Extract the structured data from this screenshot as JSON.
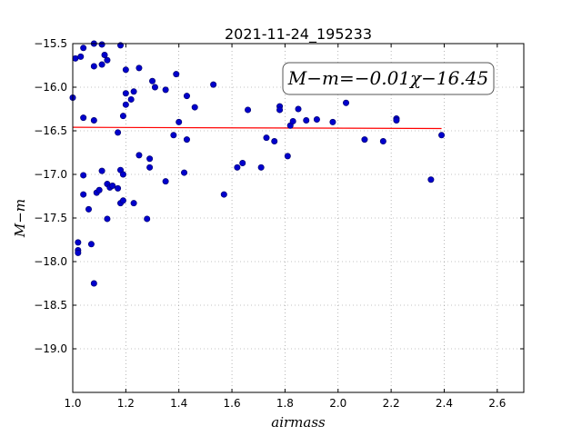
{
  "chart_data": {
    "type": "scatter",
    "title": "2021-11-24_195233",
    "xlabel": "airmass",
    "ylabel": "M−m",
    "xlim": [
      1.0,
      2.7
    ],
    "ylim": [
      -15.5,
      -19.5
    ],
    "y_inverted": true,
    "xticks": [
      1.0,
      1.2,
      1.4,
      1.6,
      1.8,
      2.0,
      2.2,
      2.4,
      2.6
    ],
    "xtick_labels": [
      "1.0",
      "1.2",
      "1.4",
      "1.6",
      "1.8",
      "2.0",
      "2.2",
      "2.4",
      "2.6"
    ],
    "yticks": [
      -15.5,
      -16.0,
      -16.5,
      -17.0,
      -17.5,
      -18.0,
      -18.5,
      -19.0
    ],
    "ytick_labels": [
      "−15.5",
      "−16.0",
      "−16.5",
      "−17.0",
      "−17.5",
      "−18.0",
      "−18.5",
      "−19.0"
    ],
    "grid": true,
    "annotation": {
      "text": "M−m=−0.01χ−16.45",
      "placement": "top-right"
    },
    "fit": {
      "slope": -0.01,
      "intercept": -16.45,
      "x_range": [
        1.0,
        2.39
      ]
    },
    "colors": {
      "points": "#0000cc",
      "fit_line": "#ff0000",
      "grid": "#888888"
    },
    "points": [
      [
        1.0,
        -16.12
      ],
      [
        1.01,
        -15.67
      ],
      [
        1.02,
        -17.78
      ],
      [
        1.02,
        -17.87
      ],
      [
        1.02,
        -17.9
      ],
      [
        1.03,
        -15.65
      ],
      [
        1.04,
        -15.55
      ],
      [
        1.04,
        -16.35
      ],
      [
        1.04,
        -17.01
      ],
      [
        1.04,
        -17.23
      ],
      [
        1.06,
        -17.4
      ],
      [
        1.07,
        -17.8
      ],
      [
        1.08,
        -15.5
      ],
      [
        1.08,
        -15.76
      ],
      [
        1.08,
        -16.38
      ],
      [
        1.08,
        -18.25
      ],
      [
        1.09,
        -17.21
      ],
      [
        1.1,
        -17.18
      ],
      [
        1.11,
        -15.51
      ],
      [
        1.11,
        -15.74
      ],
      [
        1.11,
        -16.96
      ],
      [
        1.12,
        -15.63
      ],
      [
        1.13,
        -15.69
      ],
      [
        1.13,
        -17.51
      ],
      [
        1.13,
        -17.11
      ],
      [
        1.14,
        -17.15
      ],
      [
        1.15,
        -17.13
      ],
      [
        1.17,
        -17.16
      ],
      [
        1.17,
        -16.52
      ],
      [
        1.18,
        -17.33
      ],
      [
        1.18,
        -16.95
      ],
      [
        1.18,
        -15.52
      ],
      [
        1.19,
        -17.3
      ],
      [
        1.19,
        -17.0
      ],
      [
        1.19,
        -16.33
      ],
      [
        1.2,
        -16.07
      ],
      [
        1.2,
        -16.2
      ],
      [
        1.2,
        -15.8
      ],
      [
        1.22,
        -16.14
      ],
      [
        1.23,
        -16.05
      ],
      [
        1.23,
        -17.33
      ],
      [
        1.25,
        -15.78
      ],
      [
        1.25,
        -16.78
      ],
      [
        1.28,
        -17.51
      ],
      [
        1.29,
        -16.82
      ],
      [
        1.29,
        -16.92
      ],
      [
        1.3,
        -15.93
      ],
      [
        1.31,
        -16.0
      ],
      [
        1.35,
        -16.03
      ],
      [
        1.35,
        -17.08
      ],
      [
        1.38,
        -16.55
      ],
      [
        1.39,
        -15.85
      ],
      [
        1.4,
        -16.4
      ],
      [
        1.42,
        -16.98
      ],
      [
        1.43,
        -16.1
      ],
      [
        1.43,
        -16.6
      ],
      [
        1.46,
        -16.23
      ],
      [
        1.53,
        -15.97
      ],
      [
        1.57,
        -17.23
      ],
      [
        1.62,
        -16.92
      ],
      [
        1.64,
        -16.87
      ],
      [
        1.66,
        -16.26
      ],
      [
        1.71,
        -16.92
      ],
      [
        1.73,
        -16.58
      ],
      [
        1.76,
        -16.62
      ],
      [
        1.78,
        -16.22
      ],
      [
        1.78,
        -16.26
      ],
      [
        1.81,
        -16.79
      ],
      [
        1.82,
        -16.44
      ],
      [
        1.83,
        -16.39
      ],
      [
        1.85,
        -16.25
      ],
      [
        1.88,
        -16.38
      ],
      [
        1.92,
        -16.37
      ],
      [
        1.98,
        -16.4
      ],
      [
        2.03,
        -16.18
      ],
      [
        2.1,
        -16.6
      ],
      [
        2.17,
        -16.62
      ],
      [
        2.22,
        -16.36
      ],
      [
        2.22,
        -16.38
      ],
      [
        2.35,
        -17.06
      ],
      [
        2.39,
        -16.55
      ]
    ]
  }
}
